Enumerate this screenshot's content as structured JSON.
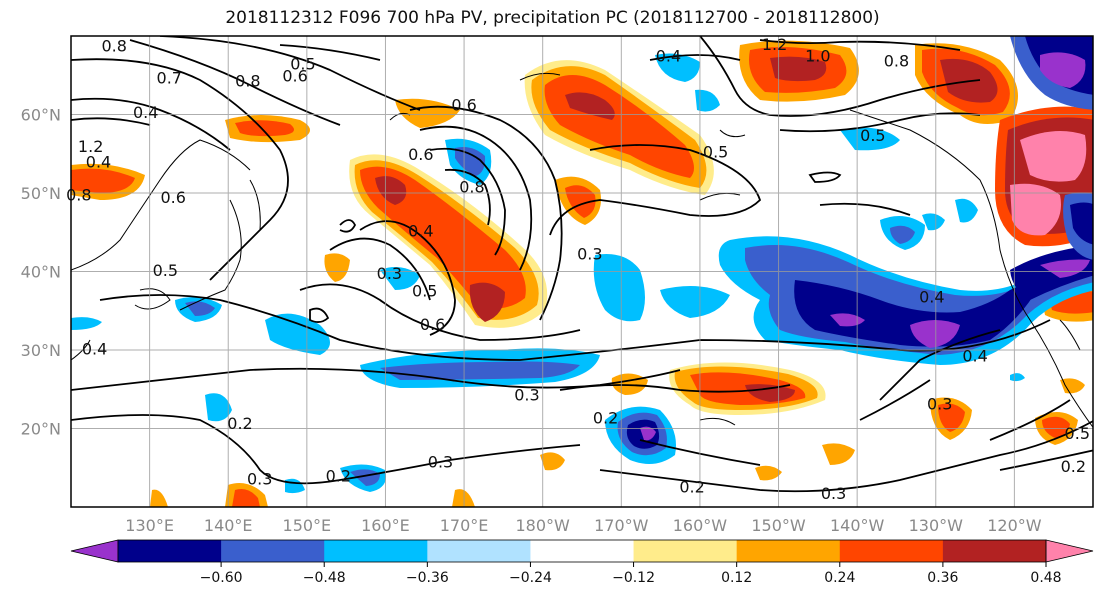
{
  "title": "2018112312 F096 700 hPa PV, precipitation PC (2018112700 - 2018112800)",
  "map": {
    "lat_range": [
      10,
      70
    ],
    "lon_range_east": [
      120,
      250
    ],
    "lat_ticks": [
      {
        "value": 20,
        "label": "20°N"
      },
      {
        "value": 30,
        "label": "30°N"
      },
      {
        "value": 40,
        "label": "40°N"
      },
      {
        "value": 50,
        "label": "50°N"
      },
      {
        "value": 60,
        "label": "60°N"
      }
    ],
    "lon_ticks": [
      {
        "value": 130,
        "label": "130°E"
      },
      {
        "value": 140,
        "label": "140°E"
      },
      {
        "value": 150,
        "label": "150°E"
      },
      {
        "value": 160,
        "label": "160°E"
      },
      {
        "value": 170,
        "label": "170°E"
      },
      {
        "value": 180,
        "label": "180°W"
      },
      {
        "value": 190,
        "label": "170°W"
      },
      {
        "value": 200,
        "label": "160°W"
      },
      {
        "value": 210,
        "label": "150°W"
      },
      {
        "value": 220,
        "label": "140°W"
      },
      {
        "value": 230,
        "label": "130°W"
      },
      {
        "value": 240,
        "label": "120°W"
      }
    ],
    "grid": true
  },
  "colorbar": {
    "boundaries": [
      -0.6,
      -0.48,
      -0.36,
      -0.24,
      -0.12,
      0.12,
      0.24,
      0.36,
      0.48,
      0.6
    ],
    "labels": [
      "−0.60",
      "−0.48",
      "−0.36",
      "−0.24",
      "−0.12",
      "0.12",
      "0.24",
      "0.36",
      "0.48",
      "0.60"
    ],
    "colors": [
      "#9932CC",
      "#00008B",
      "#3A5FCD",
      "#00BFFF",
      "#B0E2FF",
      "#FFFFFF",
      "#FFEC8B",
      "#FFA500",
      "#FF4500",
      "#B22222",
      "#FF82AB"
    ],
    "extend": "both"
  },
  "contour_labels": [
    {
      "text": "0.8",
      "lon": 125.5,
      "lat": 68.8
    },
    {
      "text": "0.5",
      "lon": 149.5,
      "lat": 66.5
    },
    {
      "text": "0.6",
      "lon": 148.5,
      "lat": 65
    },
    {
      "text": "0.7",
      "lon": 132.5,
      "lat": 64.7
    },
    {
      "text": "0.8",
      "lon": 142.5,
      "lat": 64.3
    },
    {
      "text": "0.4",
      "lon": 129.5,
      "lat": 60.3
    },
    {
      "text": "0.6",
      "lon": 170,
      "lat": 61.3
    },
    {
      "text": "0.5",
      "lon": 202,
      "lat": 55.3
    },
    {
      "text": "0.5",
      "lon": 222,
      "lat": 57.4
    },
    {
      "text": "1.0",
      "lon": 215,
      "lat": 67.5
    },
    {
      "text": "0.8",
      "lon": 225,
      "lat": 66.9
    },
    {
      "text": "1.2",
      "lon": 209.5,
      "lat": 69
    },
    {
      "text": "0.6",
      "lon": 164.5,
      "lat": 55
    },
    {
      "text": "0.8",
      "lon": 171,
      "lat": 50.8
    },
    {
      "text": "0.4",
      "lon": 164.5,
      "lat": 45.2
    },
    {
      "text": "0.3",
      "lon": 160.5,
      "lat": 39.8
    },
    {
      "text": "0.5",
      "lon": 165,
      "lat": 37.6
    },
    {
      "text": "0.6",
      "lon": 166,
      "lat": 33.3
    },
    {
      "text": "0.3",
      "lon": 186,
      "lat": 42.3
    },
    {
      "text": "0.3",
      "lon": 178,
      "lat": 24.3
    },
    {
      "text": "0.2",
      "lon": 188,
      "lat": 21.4
    },
    {
      "text": "0.3",
      "lon": 167,
      "lat": 15.8
    },
    {
      "text": "0.2",
      "lon": 199,
      "lat": 12.6
    },
    {
      "text": "0.3",
      "lon": 217,
      "lat": 11.8
    },
    {
      "text": "0.4",
      "lon": 229.5,
      "lat": 36.8
    },
    {
      "text": "0.4",
      "lon": 235,
      "lat": 29.3
    },
    {
      "text": "0.3",
      "lon": 230.5,
      "lat": 23.2
    },
    {
      "text": "0.5",
      "lon": 248,
      "lat": 19.4
    },
    {
      "text": "0.2",
      "lon": 247.5,
      "lat": 15.2
    },
    {
      "text": "1.2",
      "lon": 122.5,
      "lat": 56
    },
    {
      "text": "0.4",
      "lon": 123.5,
      "lat": 54
    },
    {
      "text": "0.6",
      "lon": 133,
      "lat": 49.5
    },
    {
      "text": "0.8",
      "lon": 121,
      "lat": 49.8
    },
    {
      "text": "0.5",
      "lon": 132,
      "lat": 40.2
    },
    {
      "text": "0.4",
      "lon": 123,
      "lat": 30.2
    },
    {
      "text": "0.2",
      "lon": 141.5,
      "lat": 20.7
    },
    {
      "text": "0.3",
      "lon": 144,
      "lat": 13.6
    },
    {
      "text": "0.2",
      "lon": 154,
      "lat": 14
    },
    {
      "text": "0.4",
      "lon": 196,
      "lat": 67.5
    }
  ]
}
